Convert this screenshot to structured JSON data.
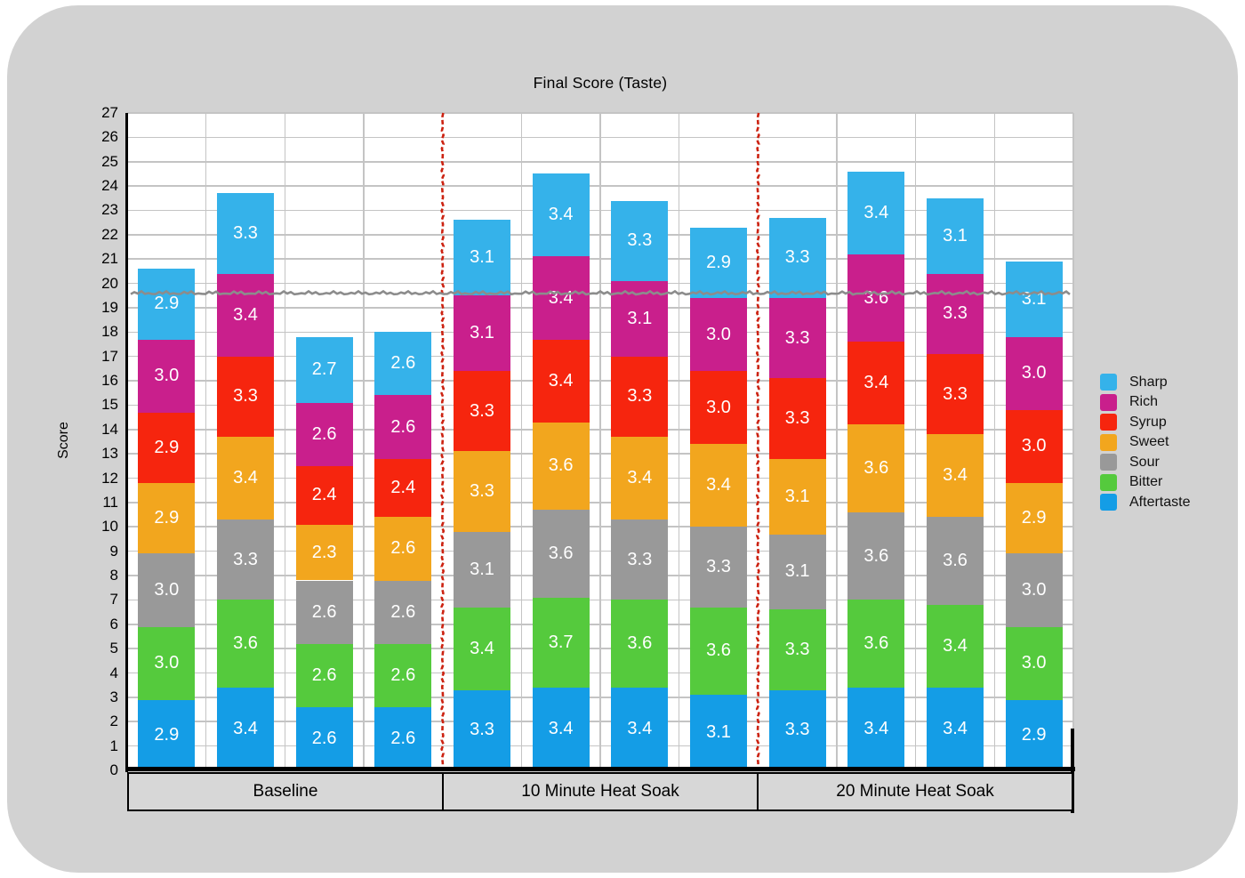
{
  "page": {
    "background_color": "#ffffff",
    "card_color": "#d2d2d2"
  },
  "chart_data": {
    "type": "bar",
    "stacked": true,
    "title": "Final Score (Taste)",
    "xlabel": "",
    "ylabel": "Score",
    "ylim": [
      0,
      27
    ],
    "ytick_step": 1,
    "grid": true,
    "bars_per_group": 4,
    "group_labels": [
      "Baseline",
      "10 Minute Heat Soak",
      "20 Minute Heat Soak"
    ],
    "stack_order_note": "series listed top-to-bottom as stacked in each bar; values are 12 bars: 4 Baseline, 4 ten-minute, 4 twenty-minute",
    "series": [
      {
        "name": "Sharp",
        "color": "#35b2ea",
        "values": [
          2.9,
          3.3,
          2.7,
          2.6,
          3.1,
          3.4,
          3.3,
          2.9,
          3.3,
          3.4,
          3.1,
          3.1
        ]
      },
      {
        "name": "Rich",
        "color": "#c91f8c",
        "values": [
          3.0,
          3.4,
          2.6,
          2.6,
          3.1,
          3.4,
          3.1,
          3.0,
          3.3,
          3.6,
          3.3,
          3.0
        ]
      },
      {
        "name": "Syrup",
        "color": "#f6250e",
        "values": [
          2.9,
          3.3,
          2.4,
          2.4,
          3.3,
          3.4,
          3.3,
          3.0,
          3.3,
          3.4,
          3.3,
          3.0
        ]
      },
      {
        "name": "Sweet",
        "color": "#f2a61e",
        "values": [
          2.9,
          3.4,
          2.3,
          2.6,
          3.3,
          3.6,
          3.4,
          3.4,
          3.1,
          3.6,
          3.4,
          2.9
        ]
      },
      {
        "name": "Sour",
        "color": "#999999",
        "values": [
          3.0,
          3.3,
          2.6,
          2.6,
          3.1,
          3.6,
          3.3,
          3.3,
          3.1,
          3.6,
          3.6,
          3.0
        ]
      },
      {
        "name": "Bitter",
        "color": "#55ca3d",
        "values": [
          3.0,
          3.6,
          2.6,
          2.6,
          3.4,
          3.7,
          3.6,
          3.6,
          3.3,
          3.6,
          3.4,
          3.0
        ]
      },
      {
        "name": "Aftertaste",
        "color": "#149de6",
        "values": [
          2.9,
          3.4,
          2.6,
          2.6,
          3.3,
          3.4,
          3.4,
          3.1,
          3.3,
          3.4,
          3.4,
          2.9
        ]
      }
    ],
    "legend": {
      "position": "right",
      "entries": [
        "Sharp",
        "Rich",
        "Syrup",
        "Sweet",
        "Sour",
        "Bitter",
        "Aftertaste"
      ]
    },
    "threshold_line": {
      "value": 19.6,
      "color": "#8c8c8c",
      "style": "wavy-hand-drawn"
    },
    "group_divider_lines": {
      "color": "#cc2211",
      "style": "dashed-hand-drawn",
      "positions_after_bar": [
        4,
        8
      ]
    },
    "colors": {
      "grid": "#c4c4c4",
      "axis": "#000000",
      "plot_background": "#ffffff",
      "band_background": "#d7d7d7",
      "segment_label_text": "#ffffff"
    }
  }
}
